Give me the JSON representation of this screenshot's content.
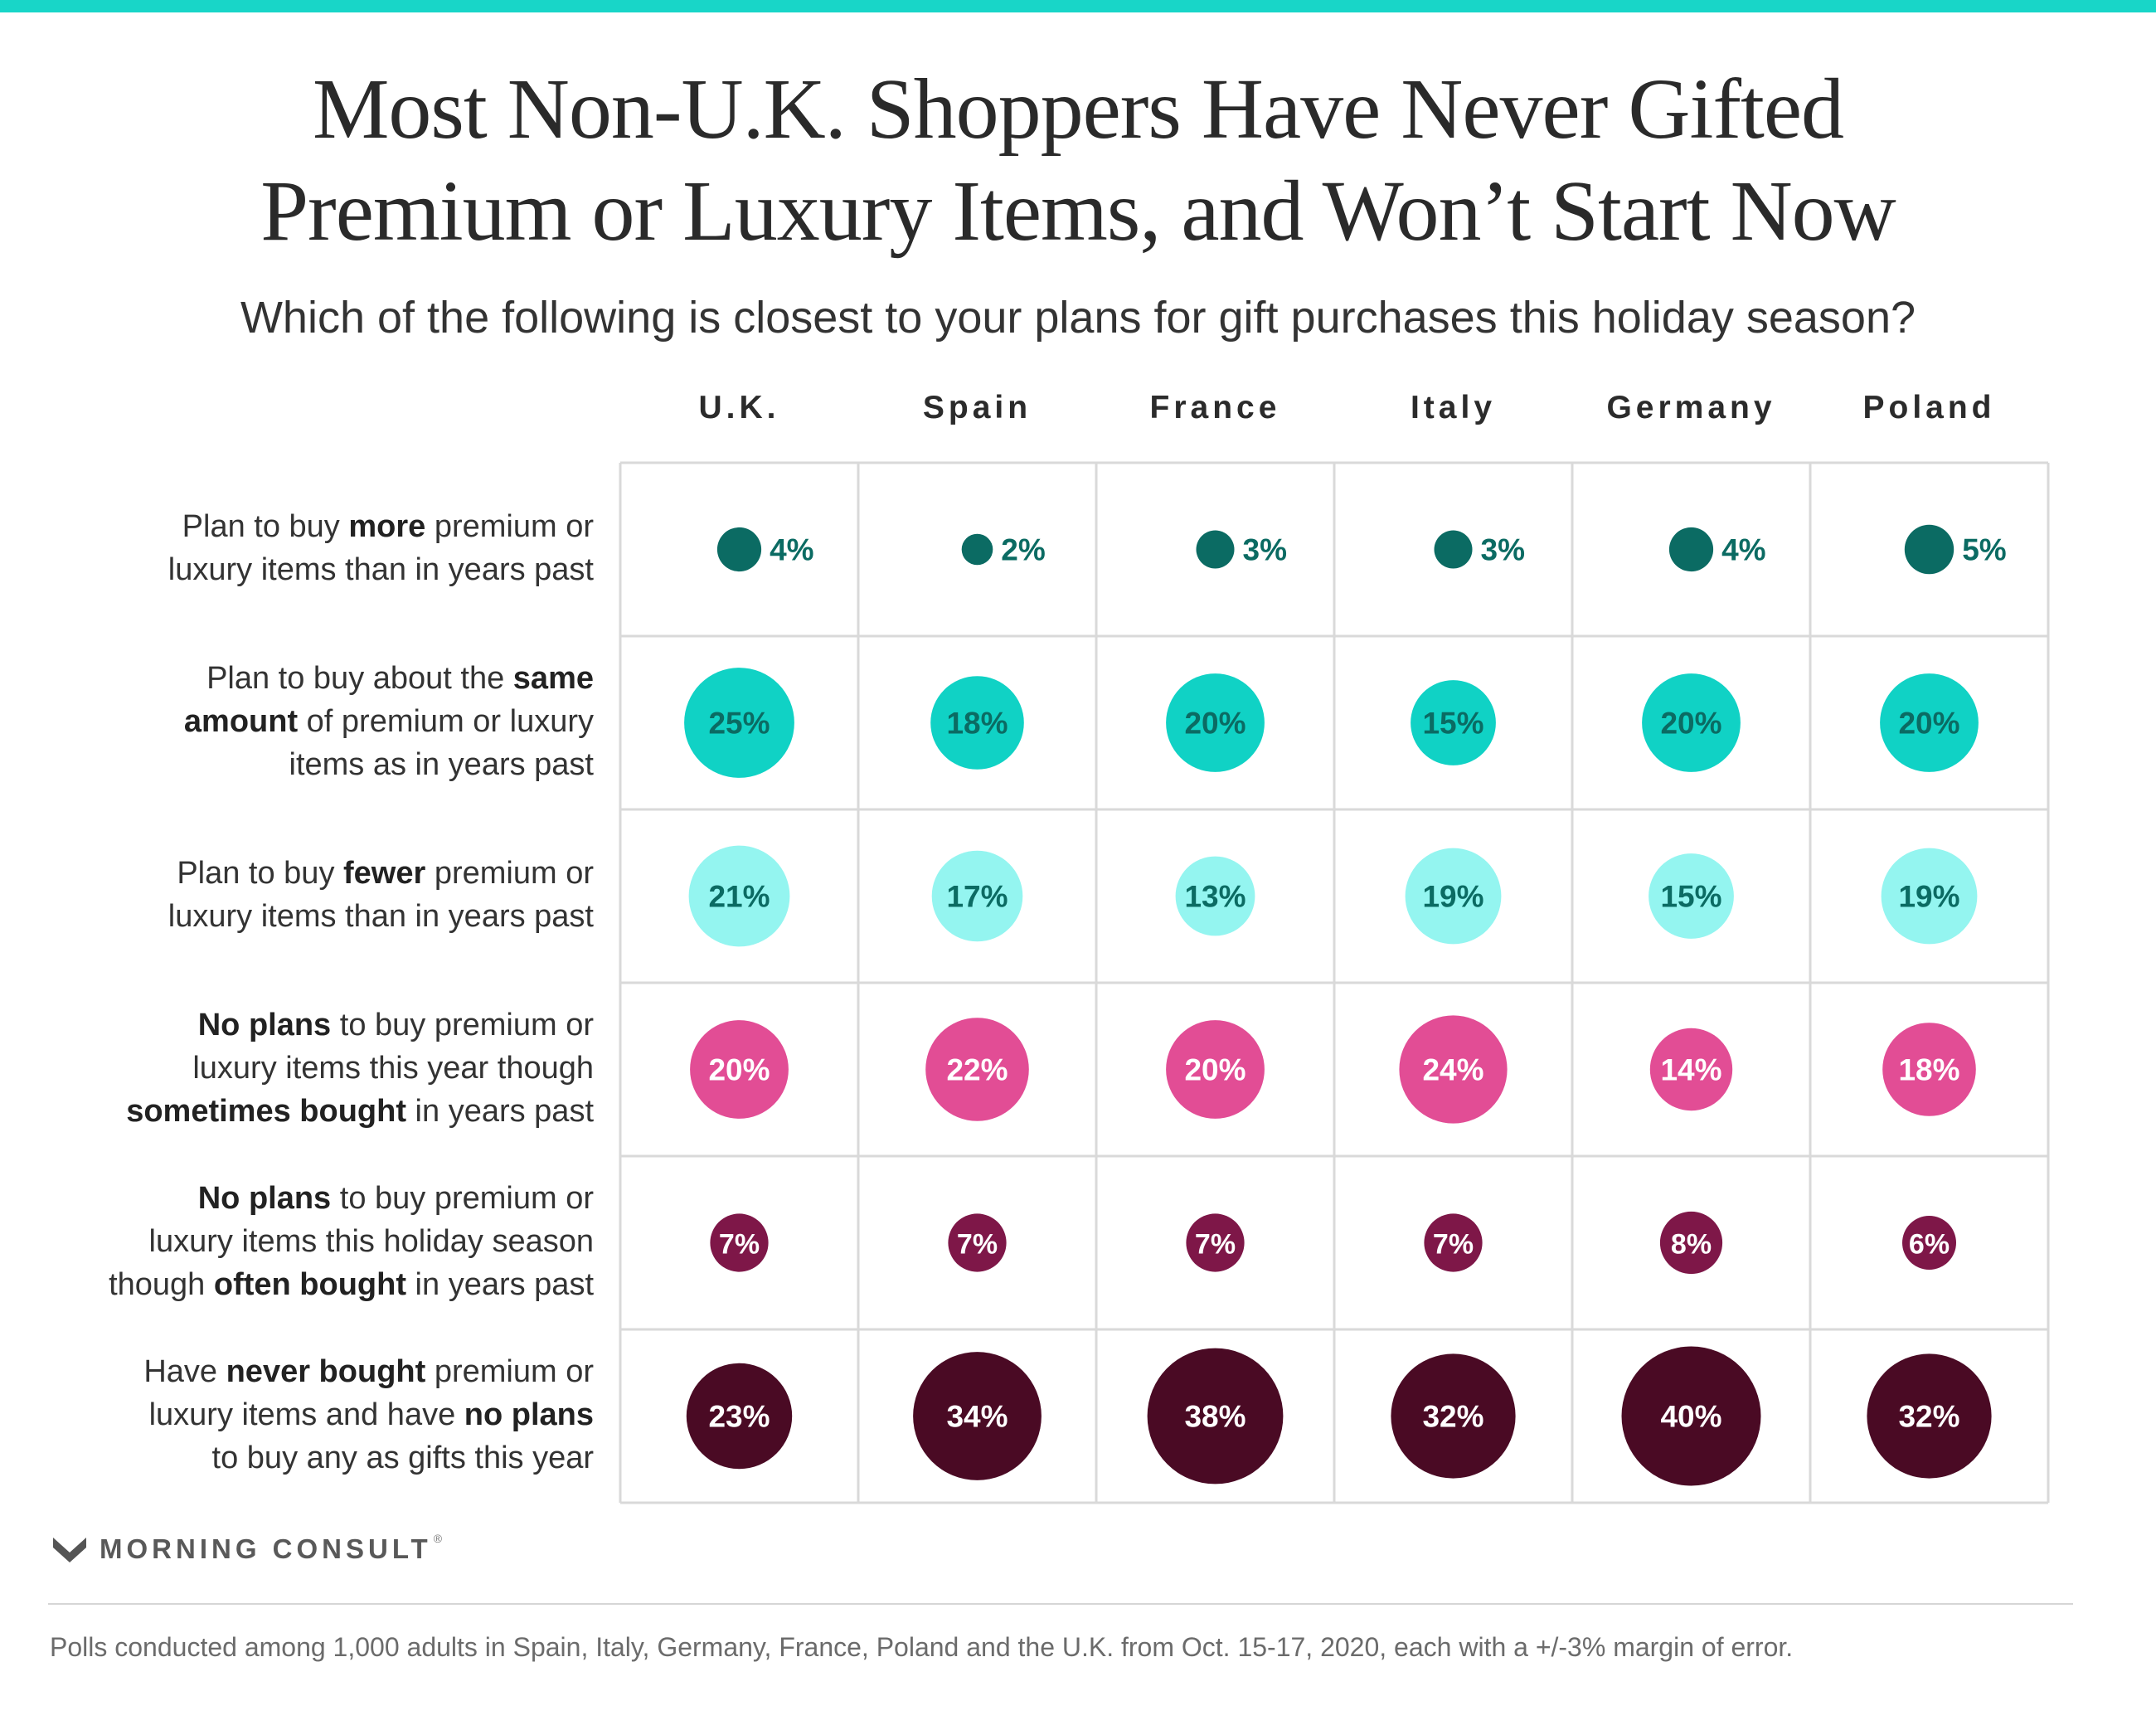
{
  "header": {
    "title_line1": "Most Non-U.K. Shoppers Have Never Gifted",
    "title_line2": "Premium or Luxury Items, and Won’t Start Now",
    "subtitle": "Which of the following is closest to your plans for gift purchases this holiday season?"
  },
  "rows": [
    {
      "html": "Plan to buy <b>more</b> premium or<br>luxury items than in years past"
    },
    {
      "html": "Plan to buy about the <b>same</b><br><b>amount</b> of premium or luxury<br>items as in years past"
    },
    {
      "html": "Plan to buy <b>fewer</b> premium or<br>luxury items than in years past"
    },
    {
      "html": "<b>No plans</b> to buy premium or<br>luxury items this year though<br><b>sometimes bought</b> in years past"
    },
    {
      "html": "<b>No plans</b> to buy premium or<br>luxury items this holiday season<br>though <b>often bought</b> in years past"
    },
    {
      "html": "Have <b>never bought</b> premium or<br>luxury items and have <b>no plans</b><br>to buy any as gifts this year"
    }
  ],
  "colors": {
    "accent_bar": "#18d6c8",
    "grid_line": "#d9d9d9",
    "row_fill": [
      "#0b6b63",
      "#10d2c5",
      "#94f5f0",
      "#e24d95",
      "#7e1748",
      "#4a0a24"
    ],
    "row_text": [
      "#0b6b63",
      "#0b6b63",
      "#0b6b63",
      "#ffffff",
      "#ffffff",
      "#ffffff"
    ]
  },
  "chart_data": {
    "type": "bubble-grid",
    "title": "Most Non-U.K. Shoppers Have Never Gifted Premium or Luxury Items, and Won’t Start Now",
    "subtitle": "Which of the following is closest to your plans for gift purchases this holiday season?",
    "categories": [
      "U.K.",
      "Spain",
      "France",
      "Italy",
      "Germany",
      "Poland"
    ],
    "unit": "%",
    "series": [
      {
        "name": "Plan to buy more premium or luxury items than in years past",
        "values": [
          4,
          2,
          3,
          3,
          4,
          5
        ]
      },
      {
        "name": "Plan to buy about the same amount of premium or luxury items as in years past",
        "values": [
          25,
          18,
          20,
          15,
          20,
          20
        ]
      },
      {
        "name": "Plan to buy fewer premium or luxury items than in years past",
        "values": [
          21,
          17,
          13,
          19,
          15,
          19
        ]
      },
      {
        "name": "No plans to buy premium or luxury items this year though sometimes bought in years past",
        "values": [
          20,
          22,
          20,
          24,
          14,
          18
        ]
      },
      {
        "name": "No plans to buy premium or luxury items this holiday season though often bought in years past",
        "values": [
          7,
          7,
          7,
          7,
          8,
          6
        ]
      },
      {
        "name": "Have never bought premium or luxury items and have no plans to buy any as gifts this year",
        "values": [
          23,
          34,
          38,
          32,
          40,
          32
        ]
      }
    ]
  },
  "footer": {
    "brand": "MORNING CONSULT",
    "trademark": "®",
    "note": "Polls conducted among 1,000 adults in Spain, Italy, Germany, France, Poland and the U.K. from Oct. 15-17, 2020, each with a +/-3% margin of error."
  }
}
